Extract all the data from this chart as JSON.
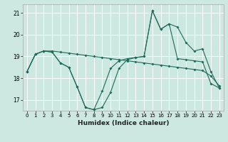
{
  "title": "",
  "xlabel": "Humidex (Indice chaleur)",
  "bg_color": "#cce8e0",
  "grid_color": "#ffffff",
  "line_color": "#1e6b5a",
  "ylim": [
    16.5,
    21.4
  ],
  "xlim": [
    -0.5,
    23.5
  ],
  "yticks": [
    17,
    18,
    19,
    20,
    21
  ],
  "xticks": [
    0,
    1,
    2,
    3,
    4,
    5,
    6,
    7,
    8,
    9,
    10,
    11,
    12,
    13,
    14,
    15,
    16,
    17,
    18,
    19,
    20,
    21,
    22,
    23
  ],
  "line1_x": [
    0,
    1,
    2,
    3,
    4,
    5,
    6,
    7,
    8,
    9,
    10,
    11,
    12,
    13,
    14,
    15,
    16,
    17,
    18,
    19,
    20,
    21,
    22,
    23
  ],
  "line1_y": [
    18.3,
    19.1,
    19.25,
    19.25,
    19.2,
    19.15,
    19.1,
    19.05,
    19.0,
    18.95,
    18.9,
    18.85,
    18.8,
    18.75,
    18.7,
    18.65,
    18.6,
    18.55,
    18.5,
    18.45,
    18.4,
    18.35,
    18.1,
    17.65
  ],
  "line2_x": [
    0,
    1,
    2,
    3,
    4,
    5,
    6,
    7,
    8,
    9,
    10,
    11,
    12,
    13,
    14,
    15,
    16,
    17,
    18,
    19,
    20,
    21,
    22,
    23
  ],
  "line2_y": [
    18.3,
    19.1,
    19.25,
    19.2,
    18.7,
    18.5,
    17.6,
    16.65,
    16.55,
    17.4,
    18.45,
    18.8,
    18.9,
    18.95,
    19.0,
    21.1,
    20.25,
    20.5,
    20.35,
    19.65,
    19.25,
    19.35,
    18.3,
    17.55
  ],
  "line3_x": [
    0,
    1,
    2,
    3,
    4,
    5,
    6,
    7,
    8,
    9,
    10,
    11,
    12,
    13,
    14,
    15,
    16,
    17,
    18,
    19,
    20,
    21,
    22,
    23
  ],
  "line3_y": [
    18.3,
    19.1,
    19.25,
    19.2,
    18.7,
    18.5,
    17.6,
    16.65,
    16.55,
    16.65,
    17.35,
    18.45,
    18.85,
    18.95,
    19.0,
    21.1,
    20.25,
    20.5,
    18.9,
    18.85,
    18.8,
    18.75,
    17.75,
    17.55
  ]
}
